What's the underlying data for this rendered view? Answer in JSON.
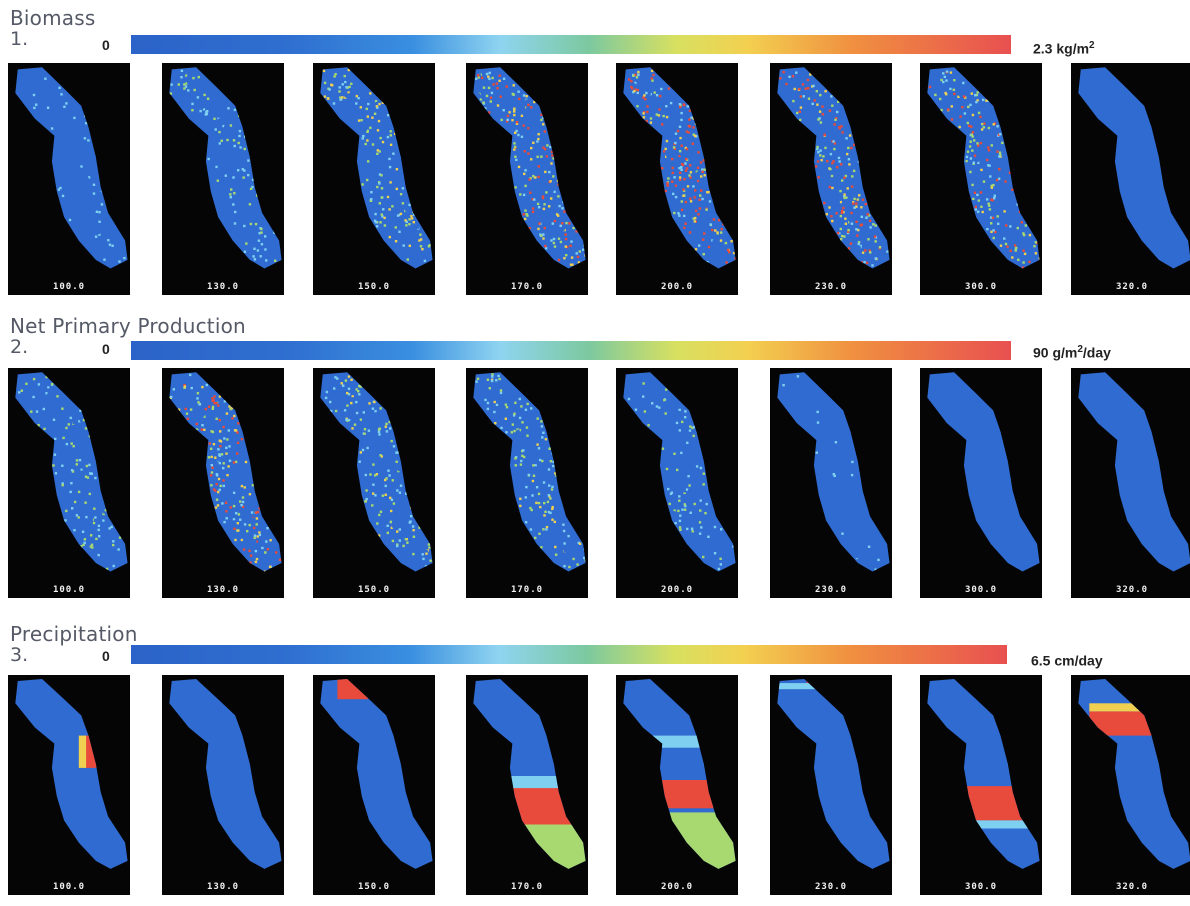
{
  "rows": [
    {
      "title": "Biomass",
      "number": "1.",
      "scale_min": "0",
      "scale_max_pre": "2.3 kg/m",
      "scale_max_sup": "2",
      "scale_max_post": "",
      "labels": [
        "100.0",
        "130.0",
        "150.0",
        "170.0",
        "200.0",
        "230.0",
        "300.0",
        "320.0"
      ],
      "pattern": "speckle",
      "speckle_levels": [
        0.25,
        0.45,
        0.6,
        0.85,
        1.0,
        1.0,
        0.8,
        0.0
      ]
    },
    {
      "title": "Net Primary Production",
      "number": "2.",
      "scale_min": "0",
      "scale_max_pre": "90 g/m",
      "scale_max_sup": "2",
      "scale_max_post": "/day",
      "labels": [
        "100.0",
        "130.0",
        "150.0",
        "170.0",
        "200.0",
        "230.0",
        "300.0",
        "320.0"
      ],
      "pattern": "speckle",
      "speckle_levels": [
        0.45,
        0.85,
        0.6,
        0.55,
        0.45,
        0.2,
        0.05,
        0.0
      ]
    },
    {
      "title": "Precipitation",
      "number": "3.",
      "scale_min": "0",
      "scale_max_pre": "6.5 cm/day",
      "scale_max_sup": "",
      "scale_max_post": "",
      "labels": [
        "100.0",
        "130.0",
        "150.0",
        "170.0",
        "200.0",
        "230.0",
        "300.0",
        "320.0"
      ],
      "pattern": "bands"
    }
  ],
  "colors": {
    "low": "#2f6bd0",
    "mid_low": "#7fd0f0",
    "mid": "#a8d870",
    "mid_high": "#f0d050",
    "high": "#e84a3c",
    "panel_bg": "#050505"
  }
}
